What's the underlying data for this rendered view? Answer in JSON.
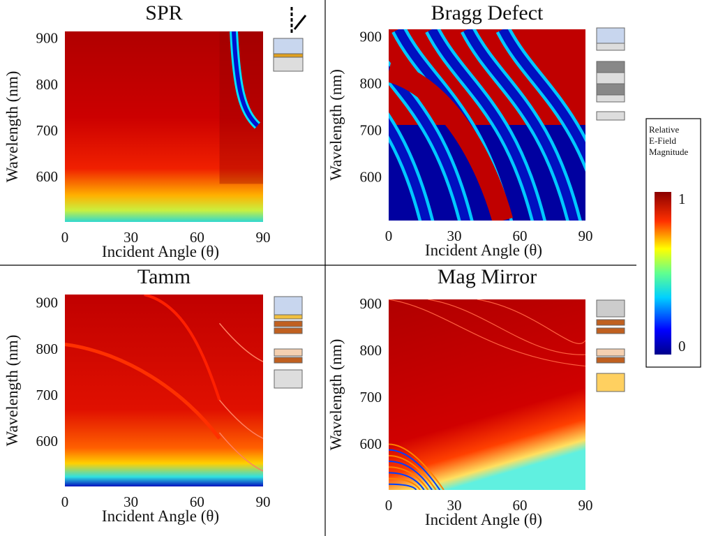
{
  "chart_data": [
    {
      "type": "heatmap",
      "title": "SPR",
      "x_label": "Incident Angle (θ)",
      "y_label": "Wavelength (nm)",
      "xlim": [
        0,
        90
      ],
      "xticks": [
        0,
        30,
        60,
        90
      ],
      "ylim": [
        505,
        918
      ],
      "yticks": [
        600,
        700,
        800,
        900
      ]
    },
    {
      "type": "heatmap",
      "title": "Bragg Defect",
      "x_label": "Incident Angle (θ)",
      "y_label": "Wavelength (nm)",
      "xlim": [
        0,
        90
      ],
      "xticks": [
        0,
        30,
        60,
        90
      ],
      "ylim": [
        510,
        919
      ],
      "yticks": [
        600,
        700,
        800,
        900
      ]
    },
    {
      "type": "heatmap",
      "title": "Tamm",
      "x_label": "Incident Angle (θ)",
      "y_label": "Wavelength (nm)",
      "xlim": [
        0,
        90
      ],
      "xticks": [
        0,
        30,
        60,
        90
      ],
      "ylim": [
        505,
        921
      ],
      "yticks": [
        600,
        700,
        800,
        900
      ]
    },
    {
      "type": "heatmap",
      "title": "Mag Mirror",
      "x_label": "Incident Angle (θ)",
      "y_label": "Wavelength (nm)",
      "xlim": [
        0,
        90
      ],
      "xticks": [
        0,
        30,
        60,
        90
      ],
      "ylim": [
        505,
        912
      ],
      "yticks": [
        600,
        700,
        800,
        900
      ]
    }
  ],
  "colorbar": {
    "title": [
      "Relative",
      "E-Field",
      "Magnitude"
    ],
    "lim": [
      0,
      1
    ],
    "ticks": [
      0,
      1
    ]
  }
}
